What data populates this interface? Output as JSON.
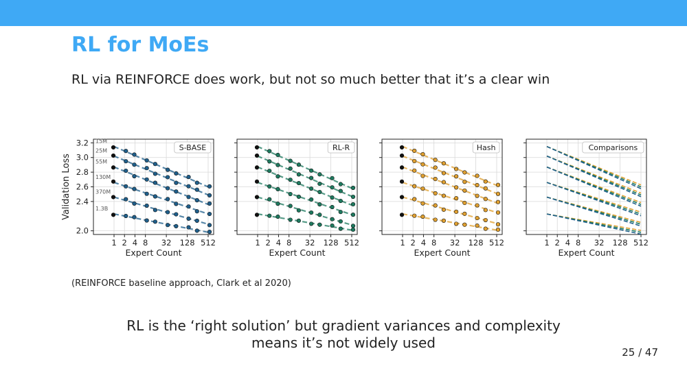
{
  "slide": {
    "title": "RL for MoEs",
    "subtitle": "RL via REINFORCE does work, but not so much better that it’s a clear win",
    "caption": "(REINFORCE baseline approach, Clark et al 2020)",
    "conclusion_line1": "RL is the ‘right solution’ but gradient variances and complexity",
    "conclusion_line2": "means it’s not widely used",
    "page_number": "25 / 47"
  },
  "chart_data": [
    {
      "type": "scatter",
      "title": "S-BASE",
      "xlabel": "Expert Count",
      "ylabel": "Validation Loss",
      "x_scale": "log2",
      "x_ticks": [
        1,
        2,
        4,
        8,
        32,
        128,
        512
      ],
      "y_ticks": [
        2.0,
        2.4,
        2.6,
        2.8,
        3.0,
        3.2
      ],
      "ylim": [
        1.95,
        3.25
      ],
      "series_labels": [
        "15M",
        "25M",
        "55M",
        "130M",
        "370M",
        "1.3B"
      ],
      "color": "#1f5f8b",
      "dots": true,
      "fits": [
        {
          "name": "15M",
          "x": [
            1,
            512
          ],
          "y": [
            3.15,
            2.6
          ]
        },
        {
          "name": "25M",
          "x": [
            1,
            512
          ],
          "y": [
            3.02,
            2.49
          ]
        },
        {
          "name": "55M",
          "x": [
            1,
            512
          ],
          "y": [
            2.87,
            2.36
          ]
        },
        {
          "name": "130M",
          "x": [
            1,
            512
          ],
          "y": [
            2.66,
            2.23
          ]
        },
        {
          "name": "370M",
          "x": [
            1,
            512
          ],
          "y": [
            2.46,
            2.09
          ]
        },
        {
          "name": "1.3B",
          "x": [
            1,
            512
          ],
          "y": [
            2.23,
            1.98
          ]
        }
      ],
      "grid": true
    },
    {
      "type": "scatter",
      "title": "RL-R",
      "xlabel": "Expert Count",
      "x_scale": "log2",
      "x_ticks": [
        1,
        2,
        4,
        8,
        32,
        128,
        512
      ],
      "ylim": [
        1.95,
        3.25
      ],
      "color": "#1e7a5f",
      "dots": true,
      "fits": [
        {
          "x": [
            1,
            512
          ],
          "y": [
            3.15,
            2.58
          ]
        },
        {
          "x": [
            1,
            512
          ],
          "y": [
            3.02,
            2.47
          ]
        },
        {
          "x": [
            1,
            512
          ],
          "y": [
            2.87,
            2.35
          ]
        },
        {
          "x": [
            1,
            512
          ],
          "y": [
            2.66,
            2.22
          ]
        },
        {
          "x": [
            1,
            512
          ],
          "y": [
            2.46,
            2.08
          ]
        },
        {
          "x": [
            1,
            512
          ],
          "y": [
            2.23,
            2.01
          ]
        }
      ],
      "grid": true
    },
    {
      "type": "scatter",
      "title": "Hash",
      "xlabel": "Expert Count",
      "x_scale": "log2",
      "x_ticks": [
        1,
        2,
        4,
        8,
        32,
        128,
        512
      ],
      "ylim": [
        1.95,
        3.25
      ],
      "color": "#e0a030",
      "dots": true,
      "fits": [
        {
          "x": [
            1,
            512
          ],
          "y": [
            3.15,
            2.62
          ]
        },
        {
          "x": [
            1,
            512
          ],
          "y": [
            3.02,
            2.51
          ]
        },
        {
          "x": [
            1,
            512
          ],
          "y": [
            2.87,
            2.38
          ]
        },
        {
          "x": [
            1,
            512
          ],
          "y": [
            2.66,
            2.25
          ]
        },
        {
          "x": [
            1,
            512
          ],
          "y": [
            2.46,
            2.1
          ]
        },
        {
          "x": [
            1,
            512
          ],
          "y": [
            2.23,
            2.01
          ]
        }
      ],
      "grid": true
    },
    {
      "type": "line",
      "title": "Comparisons",
      "xlabel": "Expert Count",
      "x_scale": "log2",
      "x_ticks": [
        1,
        2,
        4,
        8,
        32,
        128,
        512
      ],
      "ylim": [
        1.95,
        3.25
      ],
      "colors": [
        "#e0a030",
        "#1e7a5f",
        "#1f5f8b"
      ],
      "dots": false,
      "grid": true
    }
  ]
}
